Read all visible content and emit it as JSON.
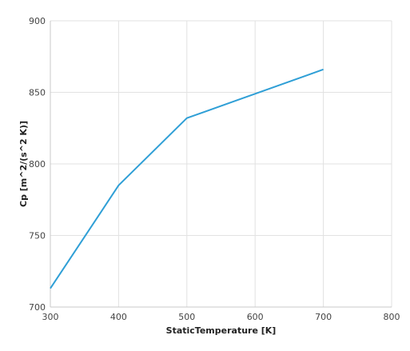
{
  "chart_data": {
    "type": "line",
    "title": "",
    "xlabel": "StaticTemperature [K]",
    "ylabel": "Cp [m^2/(s^2 K)]",
    "xlim": [
      300,
      800
    ],
    "ylim": [
      700,
      900
    ],
    "x_ticks": [
      300,
      400,
      500,
      600,
      700,
      800
    ],
    "y_ticks": [
      700,
      750,
      800,
      850,
      900
    ],
    "grid": true,
    "series": [
      {
        "x": [
          300,
          400,
          500,
          600,
          700
        ],
        "values": [
          713,
          785,
          832,
          849,
          866
        ],
        "color": "#2f9fd6"
      }
    ]
  }
}
